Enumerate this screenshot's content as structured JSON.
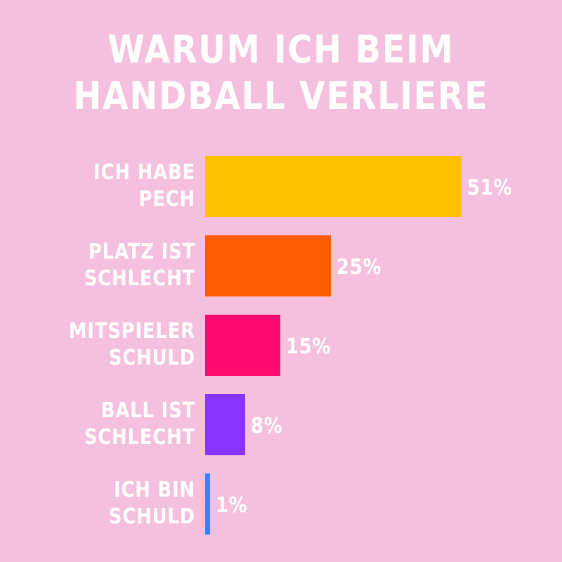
{
  "page": {
    "background_color": "#f4c0dd",
    "text_color": "#ffffff"
  },
  "chart_data": {
    "type": "bar",
    "orientation": "horizontal",
    "title": "WARUM ICH BEIM HANDBALL VERLIERE",
    "title_lines": [
      "WARUM ICH BEIM",
      "HANDBALL VERLIERE"
    ],
    "categories": [
      "ICH HABE PECH",
      "PLATZ IST SCHLECHT",
      "MITSPIELER SCHULD",
      "BALL IST SCHLECHT",
      "ICH BIN SCHULD"
    ],
    "category_lines": [
      [
        "ICH HABE",
        "PECH"
      ],
      [
        "PLATZ IST",
        "SCHLECHT"
      ],
      [
        "MITSPIELER",
        "SCHULD"
      ],
      [
        "BALL IST",
        "SCHLECHT"
      ],
      [
        "ICH BIN",
        "SCHULD"
      ]
    ],
    "values": [
      51,
      25,
      15,
      8,
      1
    ],
    "value_labels": [
      "51%",
      "25%",
      "15%",
      "8%",
      "1%"
    ],
    "unit": "%",
    "colors": [
      "#ffc000",
      "#ff5a00",
      "#ff0a6e",
      "#8a34ff",
      "#2f86ff"
    ],
    "xlim": [
      0,
      51
    ],
    "grid": false,
    "legend": "none"
  }
}
